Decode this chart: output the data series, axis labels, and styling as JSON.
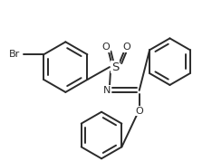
{
  "background_color": "#ffffff",
  "line_color": "#2a2a2a",
  "line_width": 1.4,
  "figsize": [
    2.34,
    1.78
  ],
  "dpi": 100,
  "xlim": [
    0,
    234
  ],
  "ylim": [
    0,
    178
  ]
}
